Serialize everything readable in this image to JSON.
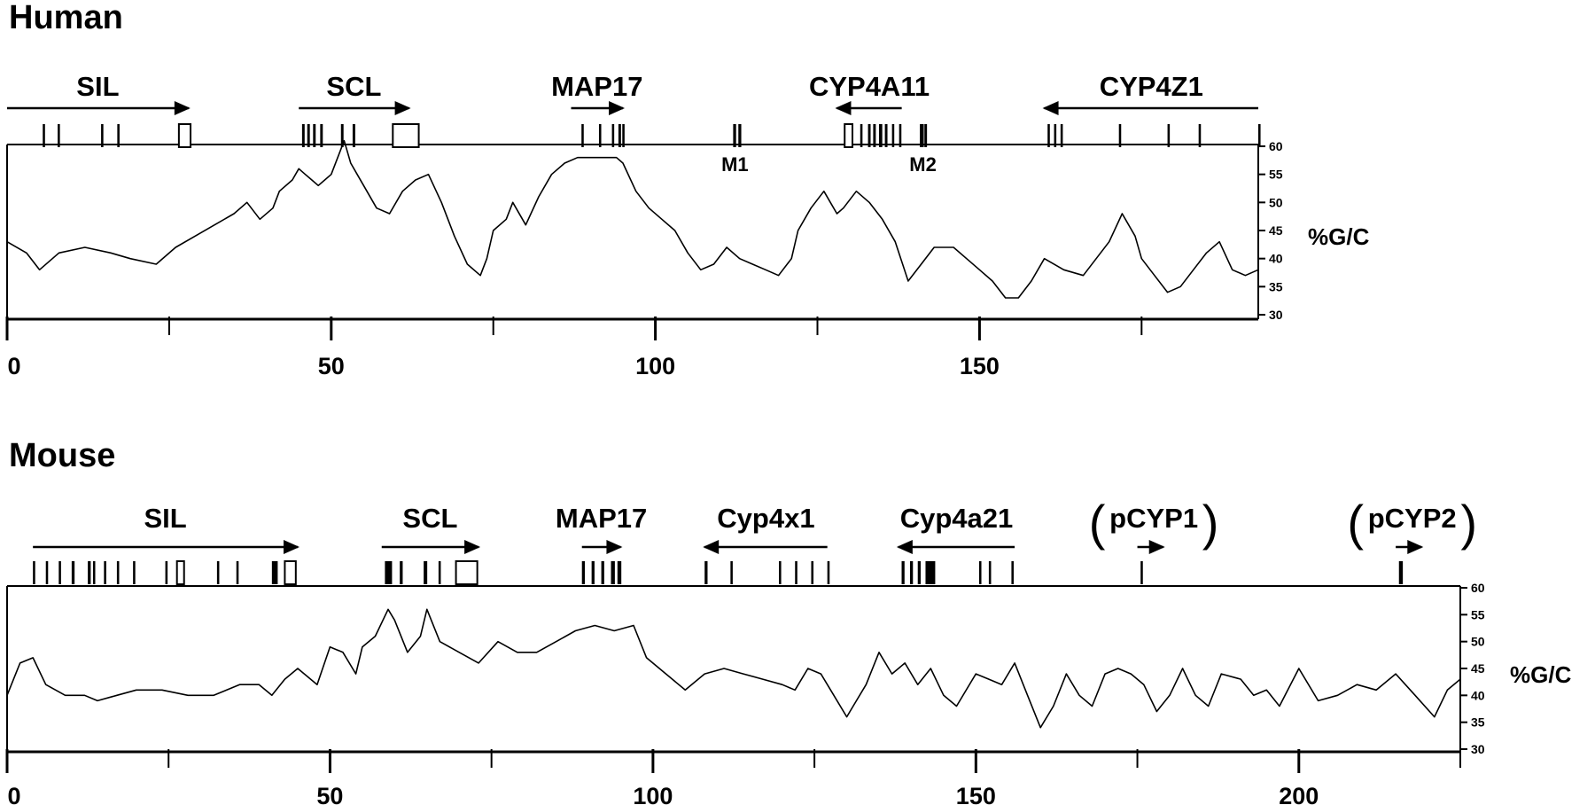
{
  "chart_data": [
    {
      "type": "line",
      "title": "Human",
      "ylabel": "%G/C",
      "xlim": [
        0,
        193
      ],
      "ylim": [
        30,
        60
      ],
      "xticks_labeled": [
        0,
        50,
        100,
        150
      ],
      "xticks_minor": [
        25,
        75,
        125,
        175
      ],
      "yticks": [
        30,
        35,
        40,
        45,
        50,
        55,
        60
      ],
      "genes": [
        {
          "name": "SIL",
          "start": 0,
          "end": 28,
          "direction": "right"
        },
        {
          "name": "SCL",
          "start": 45,
          "end": 62,
          "direction": "right"
        },
        {
          "name": "MAP17",
          "start": 87,
          "end": 95,
          "direction": "right"
        },
        {
          "name": "CYP4A11",
          "start": 128,
          "end": 138,
          "direction": "left"
        },
        {
          "name": "CYP4Z1",
          "start": 160,
          "end": 193,
          "direction": "left"
        }
      ],
      "markers": [
        {
          "label": "M1",
          "position": 112
        },
        {
          "label": "M2",
          "position": 141
        }
      ],
      "exons": [
        {
          "pos": 5.5,
          "w": 0.35,
          "open": false
        },
        {
          "pos": 7.8,
          "w": 0.35,
          "open": false
        },
        {
          "pos": 14.5,
          "w": 0.35,
          "open": false
        },
        {
          "pos": 17.0,
          "w": 0.35,
          "open": false
        },
        {
          "pos": 26.5,
          "w": 1.8,
          "open": true
        },
        {
          "pos": 45.5,
          "w": 0.4,
          "open": false
        },
        {
          "pos": 46.3,
          "w": 0.4,
          "open": false
        },
        {
          "pos": 47.2,
          "w": 0.4,
          "open": false
        },
        {
          "pos": 48.3,
          "w": 0.4,
          "open": false
        },
        {
          "pos": 51.5,
          "w": 0.4,
          "open": false
        },
        {
          "pos": 53.3,
          "w": 0.4,
          "open": false
        },
        {
          "pos": 59.5,
          "w": 4.0,
          "open": true
        },
        {
          "pos": 88.6,
          "w": 0.35,
          "open": false
        },
        {
          "pos": 91.3,
          "w": 0.35,
          "open": false
        },
        {
          "pos": 93.3,
          "w": 0.35,
          "open": false
        },
        {
          "pos": 94.3,
          "w": 0.4,
          "open": false
        },
        {
          "pos": 94.9,
          "w": 0.35,
          "open": false
        },
        {
          "pos": 112.0,
          "w": 0.45,
          "open": false
        },
        {
          "pos": 112.8,
          "w": 0.45,
          "open": false
        },
        {
          "pos": 129.2,
          "w": 1.2,
          "open": true
        },
        {
          "pos": 131.6,
          "w": 0.35,
          "open": false
        },
        {
          "pos": 132.8,
          "w": 0.4,
          "open": false
        },
        {
          "pos": 133.6,
          "w": 0.4,
          "open": false
        },
        {
          "pos": 134.5,
          "w": 0.5,
          "open": false
        },
        {
          "pos": 135.4,
          "w": 0.4,
          "open": false
        },
        {
          "pos": 136.5,
          "w": 0.35,
          "open": false
        },
        {
          "pos": 137.6,
          "w": 0.35,
          "open": false
        },
        {
          "pos": 140.8,
          "w": 0.6,
          "open": false
        },
        {
          "pos": 141.5,
          "w": 0.4,
          "open": false
        },
        {
          "pos": 160.5,
          "w": 0.35,
          "open": false
        },
        {
          "pos": 161.5,
          "w": 0.35,
          "open": false
        },
        {
          "pos": 162.5,
          "w": 0.35,
          "open": false
        },
        {
          "pos": 171.5,
          "w": 0.35,
          "open": false
        },
        {
          "pos": 179.0,
          "w": 0.35,
          "open": false
        },
        {
          "pos": 183.8,
          "w": 0.35,
          "open": false
        },
        {
          "pos": 193.0,
          "w": 0.35,
          "open": false
        }
      ],
      "x": [
        0,
        3,
        5,
        8,
        12,
        16,
        19,
        23,
        26,
        29,
        32,
        35,
        37,
        39,
        41,
        42,
        44,
        45,
        46,
        47,
        48,
        49,
        50,
        52,
        53,
        54,
        55,
        57,
        59,
        61,
        63,
        65,
        67,
        69,
        71,
        73,
        74,
        75,
        77,
        78,
        80,
        82,
        84,
        86,
        88,
        90,
        92,
        94,
        95,
        97,
        99,
        101,
        103,
        105,
        107,
        109,
        111,
        113,
        115,
        117,
        119,
        121,
        122,
        124,
        126,
        127,
        128,
        129,
        131,
        133,
        135,
        137,
        139,
        141,
        143,
        146,
        148,
        150,
        152,
        154,
        156,
        158,
        160,
        163,
        166,
        168,
        170,
        172,
        174,
        175,
        177,
        179,
        181,
        183,
        185,
        187,
        189,
        191,
        193
      ],
      "values": [
        43,
        41,
        38,
        41,
        42,
        41,
        40,
        39,
        42,
        44,
        46,
        48,
        50,
        47,
        49,
        52,
        54,
        56,
        55,
        54,
        53,
        54,
        55,
        61,
        57,
        55,
        53,
        49,
        48,
        52,
        54,
        55,
        50,
        44,
        39,
        37,
        40,
        45,
        47,
        50,
        46,
        51,
        55,
        57,
        58,
        58,
        58,
        58,
        57,
        52,
        49,
        47,
        45,
        41,
        38,
        39,
        42,
        40,
        39,
        38,
        37,
        40,
        45,
        49,
        52,
        50,
        48,
        49,
        52,
        50,
        47,
        43,
        36,
        39,
        42,
        42,
        40,
        38,
        36,
        33,
        33,
        36,
        40,
        38,
        37,
        40,
        43,
        48,
        44,
        40,
        37,
        34,
        35,
        38,
        41,
        43,
        38,
        37,
        38
      ]
    },
    {
      "type": "line",
      "title": "Mouse",
      "ylabel": "%G/C",
      "xlim": [
        0,
        225
      ],
      "ylim": [
        30,
        60
      ],
      "xticks_labeled": [
        0,
        50,
        100,
        150,
        200
      ],
      "xticks_minor": [
        25,
        75,
        125,
        175,
        225
      ],
      "yticks": [
        30,
        35,
        40,
        45,
        50,
        55,
        60
      ],
      "genes": [
        {
          "name": "SIL",
          "start": 4,
          "end": 45,
          "direction": "right"
        },
        {
          "name": "SCL",
          "start": 58,
          "end": 73,
          "direction": "right"
        },
        {
          "name": "MAP17",
          "start": 89,
          "end": 95,
          "direction": "right"
        },
        {
          "name": "Cyp4x1",
          "start": 108,
          "end": 127,
          "direction": "left"
        },
        {
          "name": "Cyp4a21",
          "start": 138,
          "end": 156,
          "direction": "left"
        },
        {
          "name": "pCYP1",
          "start": 175,
          "end": 179,
          "direction": "right",
          "bracketed": true
        },
        {
          "name": "pCYP2",
          "start": 215,
          "end": 219,
          "direction": "right",
          "bracketed": true
        }
      ],
      "exons": [
        {
          "pos": 4.0,
          "w": 0.35,
          "open": false
        },
        {
          "pos": 6.0,
          "w": 0.35,
          "open": false
        },
        {
          "pos": 8.0,
          "w": 0.35,
          "open": false
        },
        {
          "pos": 10.0,
          "w": 0.45,
          "open": false
        },
        {
          "pos": 12.5,
          "w": 0.45,
          "open": false
        },
        {
          "pos": 13.3,
          "w": 0.35,
          "open": false
        },
        {
          "pos": 15.0,
          "w": 0.35,
          "open": false
        },
        {
          "pos": 17.0,
          "w": 0.35,
          "open": false
        },
        {
          "pos": 19.5,
          "w": 0.35,
          "open": false
        },
        {
          "pos": 24.5,
          "w": 0.35,
          "open": false
        },
        {
          "pos": 26.3,
          "w": 1.1,
          "open": true
        },
        {
          "pos": 32.5,
          "w": 0.35,
          "open": false
        },
        {
          "pos": 35.5,
          "w": 0.35,
          "open": false
        },
        {
          "pos": 41.0,
          "w": 0.9,
          "open": false
        },
        {
          "pos": 43.0,
          "w": 1.7,
          "open": true
        },
        {
          "pos": 58.5,
          "w": 1.1,
          "open": false
        },
        {
          "pos": 60.8,
          "w": 0.45,
          "open": false
        },
        {
          "pos": 64.5,
          "w": 0.55,
          "open": false
        },
        {
          "pos": 66.8,
          "w": 0.35,
          "open": false
        },
        {
          "pos": 69.5,
          "w": 3.3,
          "open": true
        },
        {
          "pos": 89.0,
          "w": 0.45,
          "open": false
        },
        {
          "pos": 90.5,
          "w": 0.45,
          "open": false
        },
        {
          "pos": 92.0,
          "w": 0.45,
          "open": false
        },
        {
          "pos": 93.5,
          "w": 0.6,
          "open": false
        },
        {
          "pos": 94.5,
          "w": 0.6,
          "open": false
        },
        {
          "pos": 108.0,
          "w": 0.45,
          "open": false
        },
        {
          "pos": 112.0,
          "w": 0.35,
          "open": false
        },
        {
          "pos": 119.5,
          "w": 0.35,
          "open": false
        },
        {
          "pos": 122.0,
          "w": 0.35,
          "open": false
        },
        {
          "pos": 124.5,
          "w": 0.35,
          "open": false
        },
        {
          "pos": 127.0,
          "w": 0.35,
          "open": false
        },
        {
          "pos": 138.5,
          "w": 0.45,
          "open": false
        },
        {
          "pos": 139.8,
          "w": 0.45,
          "open": false
        },
        {
          "pos": 141.0,
          "w": 0.45,
          "open": false
        },
        {
          "pos": 142.2,
          "w": 1.5,
          "open": false
        },
        {
          "pos": 150.5,
          "w": 0.35,
          "open": false
        },
        {
          "pos": 152.0,
          "w": 0.35,
          "open": false
        },
        {
          "pos": 155.5,
          "w": 0.35,
          "open": false
        },
        {
          "pos": 175.5,
          "w": 0.35,
          "open": false
        },
        {
          "pos": 215.5,
          "w": 0.6,
          "open": false
        }
      ],
      "x": [
        0,
        2,
        4,
        6,
        9,
        12,
        14,
        17,
        20,
        24,
        28,
        32,
        36,
        39,
        41,
        43,
        45,
        48,
        50,
        52,
        54,
        55,
        57,
        59,
        60,
        62,
        64,
        65,
        67,
        70,
        73,
        76,
        79,
        82,
        85,
        88,
        91,
        94,
        97,
        99,
        102,
        105,
        108,
        111,
        114,
        117,
        120,
        122,
        124,
        126,
        128,
        130,
        131,
        133,
        135,
        137,
        139,
        141,
        143,
        145,
        147,
        150,
        152,
        154,
        156,
        158,
        160,
        162,
        164,
        166,
        168,
        170,
        172,
        174,
        176,
        178,
        180,
        182,
        184,
        186,
        188,
        191,
        193,
        195,
        197,
        200,
        203,
        206,
        209,
        212,
        215,
        218,
        221,
        223,
        225
      ],
      "values": [
        40,
        46,
        47,
        42,
        40,
        40,
        39,
        40,
        41,
        41,
        40,
        40,
        42,
        42,
        40,
        43,
        45,
        42,
        49,
        48,
        44,
        49,
        51,
        56,
        54,
        48,
        51,
        56,
        50,
        48,
        46,
        50,
        48,
        48,
        50,
        52,
        53,
        52,
        53,
        47,
        44,
        41,
        44,
        45,
        44,
        43,
        42,
        41,
        45,
        44,
        40,
        36,
        38,
        42,
        48,
        44,
        46,
        42,
        45,
        40,
        38,
        44,
        43,
        42,
        46,
        40,
        34,
        38,
        44,
        40,
        38,
        44,
        45,
        44,
        42,
        37,
        40,
        45,
        40,
        38,
        44,
        43,
        40,
        41,
        38,
        45,
        39,
        40,
        42,
        41,
        44,
        40,
        36,
        41,
        43
      ]
    }
  ]
}
